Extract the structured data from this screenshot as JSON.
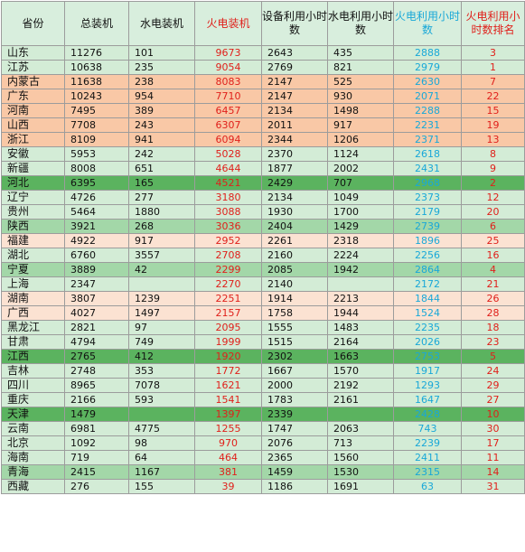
{
  "headers": {
    "province": "省份",
    "total": "总装机",
    "hydro": "水电装机",
    "thermal": "火电装机",
    "equip_hours": "设备利用小时数",
    "hydro_hours": "水电利用小时数",
    "thermal_hours": "火电利用小时数",
    "rank": "火电利用小时数排名"
  },
  "colors": {
    "header_bg": "#d8eedd",
    "red_text": "#e0201b",
    "blue_text": "#19a8d8",
    "orange": "#f9c8a6",
    "peach": "#fbe2d2",
    "light_green": "#d3ecd6",
    "mid_green": "#a3d7a8",
    "dark_green": "#5bb35f"
  },
  "rows": [
    {
      "province": "山东",
      "total": "11276",
      "hydro": "101",
      "thermal": "9673",
      "equip_hours": "2643",
      "hydro_hours": "435",
      "thermal_hours": "2888",
      "rank": "3",
      "bg": "light"
    },
    {
      "province": "江苏",
      "total": "10638",
      "hydro": "235",
      "thermal": "9054",
      "equip_hours": "2769",
      "hydro_hours": "821",
      "thermal_hours": "2979",
      "rank": "1",
      "bg": "light"
    },
    {
      "province": "内蒙古",
      "total": "11638",
      "hydro": "238",
      "thermal": "8083",
      "equip_hours": "2147",
      "hydro_hours": "525",
      "thermal_hours": "2630",
      "rank": "7",
      "bg": "orange"
    },
    {
      "province": "广东",
      "total": "10243",
      "hydro": "954",
      "thermal": "7710",
      "equip_hours": "2147",
      "hydro_hours": "930",
      "thermal_hours": "2071",
      "rank": "22",
      "bg": "orange"
    },
    {
      "province": "河南",
      "total": "7495",
      "hydro": "389",
      "thermal": "6457",
      "equip_hours": "2134",
      "hydro_hours": "1498",
      "thermal_hours": "2288",
      "rank": "15",
      "bg": "orange"
    },
    {
      "province": "山西",
      "total": "7708",
      "hydro": "243",
      "thermal": "6307",
      "equip_hours": "2011",
      "hydro_hours": "917",
      "thermal_hours": "2231",
      "rank": "19",
      "bg": "orange"
    },
    {
      "province": "浙江",
      "total": "8109",
      "hydro": "941",
      "thermal": "6094",
      "equip_hours": "2344",
      "hydro_hours": "1206",
      "thermal_hours": "2371",
      "rank": "13",
      "bg": "orange"
    },
    {
      "province": "安徽",
      "total": "5953",
      "hydro": "242",
      "thermal": "5028",
      "equip_hours": "2370",
      "hydro_hours": "1124",
      "thermal_hours": "2618",
      "rank": "8",
      "bg": "light"
    },
    {
      "province": "新疆",
      "total": "8008",
      "hydro": "651",
      "thermal": "4644",
      "equip_hours": "1877",
      "hydro_hours": "2002",
      "thermal_hours": "2431",
      "rank": "9",
      "bg": "light"
    },
    {
      "province": "河北",
      "total": "6395",
      "hydro": "165",
      "thermal": "4521",
      "equip_hours": "2429",
      "hydro_hours": "707",
      "thermal_hours": "2968",
      "rank": "2",
      "bg": "dark"
    },
    {
      "province": "辽宁",
      "total": "4726",
      "hydro": "277",
      "thermal": "3180",
      "equip_hours": "2134",
      "hydro_hours": "1049",
      "thermal_hours": "2373",
      "rank": "12",
      "bg": "light"
    },
    {
      "province": "贵州",
      "total": "5464",
      "hydro": "1880",
      "thermal": "3088",
      "equip_hours": "1930",
      "hydro_hours": "1700",
      "thermal_hours": "2179",
      "rank": "20",
      "bg": "light"
    },
    {
      "province": "陕西",
      "total": "3921",
      "hydro": "268",
      "thermal": "3036",
      "equip_hours": "2404",
      "hydro_hours": "1429",
      "thermal_hours": "2739",
      "rank": "6",
      "bg": "mid"
    },
    {
      "province": "福建",
      "total": "4922",
      "hydro": "917",
      "thermal": "2952",
      "equip_hours": "2261",
      "hydro_hours": "2318",
      "thermal_hours": "1896",
      "rank": "25",
      "bg": "peach"
    },
    {
      "province": "湖北",
      "total": "6760",
      "hydro": "3557",
      "thermal": "2708",
      "equip_hours": "2160",
      "hydro_hours": "2224",
      "thermal_hours": "2256",
      "rank": "16",
      "bg": "light"
    },
    {
      "province": "宁夏",
      "total": "3889",
      "hydro": "42",
      "thermal": "2299",
      "equip_hours": "2085",
      "hydro_hours": "1942",
      "thermal_hours": "2864",
      "rank": "4",
      "bg": "mid"
    },
    {
      "province": "上海",
      "total": "2347",
      "hydro": "",
      "thermal": "2270",
      "equip_hours": "2140",
      "hydro_hours": "",
      "thermal_hours": "2172",
      "rank": "21",
      "bg": "light"
    },
    {
      "province": "湖南",
      "total": "3807",
      "hydro": "1239",
      "thermal": "2251",
      "equip_hours": "1914",
      "hydro_hours": "2213",
      "thermal_hours": "1844",
      "rank": "26",
      "bg": "peach"
    },
    {
      "province": "广西",
      "total": "4027",
      "hydro": "1497",
      "thermal": "2157",
      "equip_hours": "1758",
      "hydro_hours": "1944",
      "thermal_hours": "1524",
      "rank": "28",
      "bg": "peach"
    },
    {
      "province": "黑龙江",
      "total": "2821",
      "hydro": "97",
      "thermal": "2095",
      "equip_hours": "1555",
      "hydro_hours": "1483",
      "thermal_hours": "2235",
      "rank": "18",
      "bg": "light"
    },
    {
      "province": "甘肃",
      "total": "4794",
      "hydro": "749",
      "thermal": "1999",
      "equip_hours": "1515",
      "hydro_hours": "2164",
      "thermal_hours": "2026",
      "rank": "23",
      "bg": "light"
    },
    {
      "province": "江西",
      "total": "2765",
      "hydro": "412",
      "thermal": "1920",
      "equip_hours": "2302",
      "hydro_hours": "1663",
      "thermal_hours": "2753",
      "rank": "5",
      "bg": "dark"
    },
    {
      "province": "吉林",
      "total": "2748",
      "hydro": "353",
      "thermal": "1772",
      "equip_hours": "1667",
      "hydro_hours": "1570",
      "thermal_hours": "1917",
      "rank": "24",
      "bg": "light"
    },
    {
      "province": "四川",
      "total": "8965",
      "hydro": "7078",
      "thermal": "1621",
      "equip_hours": "2000",
      "hydro_hours": "2192",
      "thermal_hours": "1293",
      "rank": "29",
      "bg": "light"
    },
    {
      "province": "重庆",
      "total": "2166",
      "hydro": "593",
      "thermal": "1541",
      "equip_hours": "1783",
      "hydro_hours": "2161",
      "thermal_hours": "1647",
      "rank": "27",
      "bg": "light"
    },
    {
      "province": "天津",
      "total": "1479",
      "hydro": "",
      "thermal": "1397",
      "equip_hours": "2339",
      "hydro_hours": "",
      "thermal_hours": "2428",
      "rank": "10",
      "bg": "dark"
    },
    {
      "province": "云南",
      "total": "6981",
      "hydro": "4775",
      "thermal": "1255",
      "equip_hours": "1747",
      "hydro_hours": "2063",
      "thermal_hours": "743",
      "rank": "30",
      "bg": "light"
    },
    {
      "province": "北京",
      "total": "1092",
      "hydro": "98",
      "thermal": "970",
      "equip_hours": "2076",
      "hydro_hours": "713",
      "thermal_hours": "2239",
      "rank": "17",
      "bg": "light"
    },
    {
      "province": "海南",
      "total": "719",
      "hydro": "64",
      "thermal": "464",
      "equip_hours": "2365",
      "hydro_hours": "1560",
      "thermal_hours": "2411",
      "rank": "11",
      "bg": "light"
    },
    {
      "province": "青海",
      "total": "2415",
      "hydro": "1167",
      "thermal": "381",
      "equip_hours": "1459",
      "hydro_hours": "1530",
      "thermal_hours": "2315",
      "rank": "14",
      "bg": "mid"
    },
    {
      "province": "西藏",
      "total": "276",
      "hydro": "155",
      "thermal": "39",
      "equip_hours": "1186",
      "hydro_hours": "1691",
      "thermal_hours": "63",
      "rank": "31",
      "bg": "light"
    }
  ]
}
